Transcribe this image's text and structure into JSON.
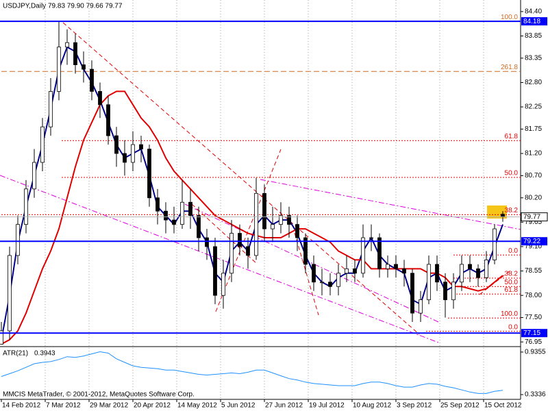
{
  "chart_data": [
    {
      "type": "candlestick",
      "title": "USDJPY,Daily",
      "ohlc_text": "79.83 79.90 79.66 79.77",
      "x": [
        0,
        3,
        6,
        9,
        12,
        15,
        18,
        21,
        24,
        27,
        30,
        33,
        36,
        39,
        42,
        45,
        48,
        51,
        54,
        57,
        60,
        63,
        66,
        69,
        72,
        75,
        78,
        81,
        84,
        87,
        90,
        93,
        96,
        99,
        102,
        105,
        108,
        111,
        114,
        117,
        120,
        123,
        126,
        129,
        132,
        135,
        138,
        141,
        144,
        147,
        150,
        153,
        156,
        159,
        162,
        165,
        168,
        171,
        174,
        177,
        180,
        183
      ],
      "open": [
        76.9,
        77.2,
        78.9,
        79.6,
        80.4,
        81.0,
        81.8,
        82.6,
        83.6,
        83.7,
        83.2,
        83.1,
        82.6,
        82.3,
        81.6,
        81.2,
        81.0,
        81.4,
        81.3,
        80.2,
        79.9,
        79.7,
        79.6,
        80.1,
        79.8,
        79.3,
        79.1,
        78.0,
        78.5,
        79.4,
        79.1,
        78.9,
        80.3,
        79.5,
        79.6,
        79.8,
        79.6,
        79.3,
        78.7,
        78.3,
        78.3,
        78.2,
        78.5,
        78.6,
        78.5,
        79.3,
        79.3,
        78.6,
        78.7,
        78.6,
        78.5,
        77.6,
        77.9,
        78.7,
        78.3,
        77.9,
        78.3,
        78.7,
        78.6,
        78.4,
        78.8,
        79.83
      ],
      "high": [
        77.4,
        79.1,
        79.8,
        80.6,
        81.3,
        82.0,
        82.9,
        84.18,
        84.0,
        83.9,
        83.5,
        83.3,
        82.8,
        82.5,
        81.8,
        81.5,
        81.7,
        81.6,
        81.4,
        80.4,
        80.1,
        80.0,
        80.6,
        80.4,
        80.0,
        79.5,
        79.3,
        78.8,
        79.7,
        79.6,
        79.3,
        80.65,
        80.5,
        80.0,
        80.1,
        80.0,
        79.8,
        79.4,
        78.9,
        78.6,
        78.5,
        78.7,
        78.9,
        78.8,
        79.6,
        79.6,
        79.4,
        78.9,
        78.9,
        78.8,
        78.6,
        78.1,
        78.9,
        78.9,
        78.5,
        78.5,
        78.9,
        78.9,
        78.7,
        79.0,
        79.6,
        79.9
      ],
      "low": [
        76.95,
        77.0,
        78.7,
        79.4,
        80.2,
        80.8,
        81.6,
        82.4,
        83.2,
        83.0,
        82.8,
        82.4,
        82.0,
        81.4,
        80.9,
        80.7,
        80.8,
        81.0,
        80.0,
        79.6,
        79.4,
        79.4,
        79.5,
        79.5,
        79.0,
        78.8,
        77.8,
        77.7,
        78.3,
        78.9,
        78.6,
        78.8,
        79.2,
        79.2,
        79.4,
        79.3,
        79.0,
        78.5,
        78.1,
        78.0,
        78.0,
        78.0,
        78.3,
        78.3,
        78.4,
        79.0,
        78.4,
        78.4,
        78.4,
        78.2,
        77.4,
        77.4,
        77.8,
        78.1,
        77.5,
        77.7,
        78.1,
        78.3,
        78.2,
        78.3,
        78.7,
        79.66
      ],
      "close": [
        77.2,
        78.9,
        79.6,
        80.4,
        81.0,
        81.8,
        82.6,
        83.6,
        83.7,
        83.2,
        83.1,
        82.6,
        82.3,
        81.6,
        81.2,
        81.0,
        81.4,
        81.3,
        80.2,
        79.9,
        79.7,
        79.6,
        80.1,
        79.8,
        79.3,
        79.1,
        78.0,
        78.5,
        79.4,
        79.1,
        78.9,
        80.3,
        79.5,
        79.6,
        79.8,
        79.6,
        79.3,
        78.7,
        78.3,
        78.3,
        78.2,
        78.5,
        78.6,
        78.5,
        79.3,
        79.3,
        78.6,
        78.7,
        78.6,
        78.5,
        77.6,
        77.9,
        78.7,
        78.3,
        77.9,
        78.3,
        78.7,
        78.6,
        78.4,
        78.8,
        79.5,
        79.77
      ],
      "bull_color": "#ffffff",
      "bear_color": "#000000",
      "wick_color": "#000000",
      "series": [
        {
          "color": "#00008b",
          "values": [
            77.0,
            78.0,
            79.2,
            80.0,
            80.7,
            81.4,
            82.2,
            83.1,
            83.6,
            83.5,
            83.1,
            82.8,
            82.4,
            81.9,
            81.4,
            81.1,
            81.2,
            81.3,
            80.7,
            80.0,
            79.8,
            79.6,
            79.9,
            79.9,
            79.5,
            79.2,
            78.5,
            78.3,
            79.0,
            79.2,
            79.0,
            79.6,
            79.8,
            79.6,
            79.7,
            79.7,
            79.4,
            78.9,
            78.5,
            78.3,
            78.2,
            78.4,
            78.5,
            78.5,
            79.0,
            79.3,
            78.9,
            78.7,
            78.6,
            78.5,
            77.9,
            77.8,
            78.4,
            78.5,
            78.1,
            78.2,
            78.5,
            78.6,
            78.5,
            78.6,
            79.1,
            79.6
          ]
        },
        {
          "color": "#e00000",
          "values": [
            76.9,
            77.0,
            77.2,
            77.6,
            78.1,
            78.6,
            79.0,
            79.5,
            80.2,
            80.9,
            81.5,
            81.9,
            82.3,
            82.5,
            82.6,
            82.6,
            82.3,
            82.0,
            81.8,
            81.5,
            81.1,
            80.8,
            80.6,
            80.4,
            80.2,
            80.0,
            79.8,
            79.7,
            79.6,
            79.5,
            79.4,
            79.35,
            79.3,
            79.3,
            79.3,
            79.4,
            79.5,
            79.5,
            79.4,
            79.3,
            79.2,
            79.0,
            78.9,
            78.8,
            78.8,
            78.6,
            78.6,
            78.6,
            78.6,
            78.6,
            78.6,
            78.6,
            78.5,
            78.5,
            78.4,
            78.2,
            78.2,
            78.15,
            78.1,
            78.15,
            78.3,
            78.45
          ]
        }
      ],
      "xlim": [
        0,
        189.5
      ],
      "ylim": [
        76.86,
        84.63
      ],
      "xticks": [
        {
          "value": 0,
          "label": "14 Feb 2012"
        },
        {
          "value": 16,
          "label": "7 Mar 2012"
        },
        {
          "value": 32,
          "label": "29 Mar 2012"
        },
        {
          "value": 48,
          "label": "20 Apr 2012"
        },
        {
          "value": 64,
          "label": "14 May 2012"
        },
        {
          "value": 80,
          "label": "5 Jun 2012"
        },
        {
          "value": 96,
          "label": "27 Jun 2012"
        },
        {
          "value": 112,
          "label": "19 Jul 2012"
        },
        {
          "value": 128,
          "label": "10 Aug 2012"
        },
        {
          "value": 144,
          "label": "3 Sep 2012"
        },
        {
          "value": 160,
          "label": "25 Sep 2012"
        },
        {
          "value": 176,
          "label": "15 Oct 2012"
        }
      ],
      "yticks": [
        {
          "value": 84.4,
          "label": "84.40"
        },
        83.85,
        83.35,
        {
          "value": 82.8,
          "label": "82.80"
        },
        82.25,
        81.75,
        {
          "value": 81.2,
          "label": "81.20"
        },
        {
          "value": 80.7,
          "label": "80.70"
        },
        {
          "value": 80.2,
          "label": "80.20"
        },
        79.65,
        {
          "value": 79.1,
          "label": "79.10"
        },
        78.55,
        {
          "value": 78.0,
          "label": "78.00"
        },
        {
          "value": 77.5,
          "label": "77.50"
        },
        76.95
      ],
      "grid": "x",
      "levels": [
        {
          "value": 84.18,
          "color": "#0000ff"
        },
        {
          "value": 79.22,
          "color": "#0000ff"
        },
        {
          "value": 77.15,
          "color": "#0000ff"
        }
      ],
      "fib_levels": [
        {
          "value": 84.18,
          "label": "100.0",
          "from": 0,
          "color": "#d2691e",
          "style": "dashed"
        },
        {
          "value": 83.05,
          "label": "261.8",
          "from": 0,
          "color": "#d2691e",
          "style": "dashed"
        },
        {
          "value": 81.49,
          "label": "61.8",
          "from": 22,
          "color": "#e00000",
          "style": "dotted"
        },
        {
          "value": 80.66,
          "label": "50.0",
          "from": 22,
          "color": "#e00000",
          "style": "dotted"
        },
        {
          "value": 79.82,
          "label": "38.2",
          "from": 0,
          "color": "#e00000",
          "style": "dotted"
        },
        {
          "value": 78.91,
          "label": "0.0",
          "from": 165,
          "color": "#e00000",
          "style": "dotted"
        },
        {
          "value": 78.39,
          "label": "38.2",
          "from": 165,
          "color": "#e00000",
          "style": "dotted"
        },
        {
          "value": 78.2,
          "label": "50.0",
          "from": 165,
          "color": "#e00000",
          "style": "dotted"
        },
        {
          "value": 78.03,
          "label": "61.8",
          "from": 165,
          "color": "#e00000",
          "style": "dotted"
        },
        {
          "value": 77.49,
          "label": "100.0",
          "from": 163,
          "color": "#e00000",
          "style": "dotted"
        },
        {
          "value": 77.19,
          "label": "0.0",
          "from": 155,
          "color": "#e00000",
          "style": "dotted"
        }
      ]
    },
    {
      "type": "line",
      "title": "ATR(21)",
      "watermark": "MMCIS MetaTrader, © 2001-2012, MetaQuotes Software Corp.",
      "series": [
        {
          "color": "#1e90ff",
          "values": [
            0.59,
            0.63,
            0.67,
            0.72,
            0.77,
            0.79,
            0.8,
            0.83,
            0.87,
            0.86,
            0.88,
            0.91,
            0.94,
            0.92,
            0.84,
            0.79,
            0.74,
            0.72,
            0.71,
            0.7,
            0.68,
            0.68,
            0.66,
            0.64,
            0.62,
            0.61,
            0.62,
            0.63,
            0.64,
            0.63,
            0.65,
            0.68,
            0.68,
            0.64,
            0.6,
            0.56,
            0.54,
            0.51,
            0.49,
            0.48,
            0.47,
            0.46,
            0.46,
            0.46,
            0.49,
            0.51,
            0.51,
            0.49,
            0.46,
            0.44,
            0.44,
            0.47,
            0.49,
            0.48,
            0.45,
            0.43,
            0.4,
            0.37,
            0.35,
            0.35,
            0.38,
            0.3943
          ]
        }
      ],
      "ylim": [
        0.276,
        0.993
      ],
      "yticks": [
        0.9355,
        0.3336
      ]
    }
  ]
}
